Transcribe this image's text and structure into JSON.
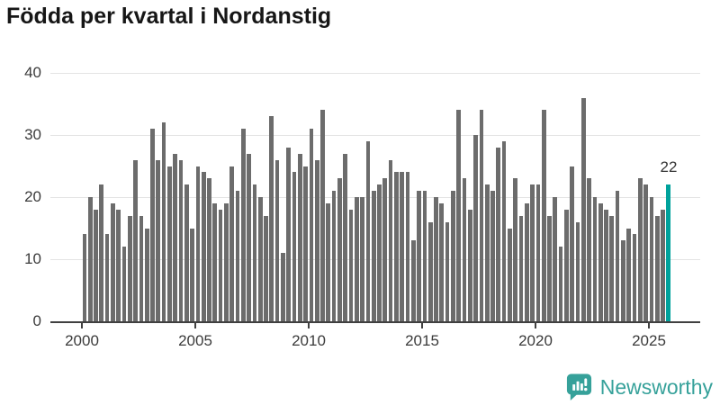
{
  "title": "Födda per kvartal i Nordanstig",
  "chart_data": {
    "type": "bar",
    "title": "Födda per kvartal i Nordanstig",
    "grid": "horizontal",
    "legend": "none",
    "bar_color": "#6c6c6c",
    "highlight_color": "#00a29c",
    "y_axis": {
      "ticks": [
        0,
        10,
        20,
        30,
        40
      ],
      "range": [
        0,
        40
      ]
    },
    "x_axis": {
      "tick_labels": [
        "2000",
        "2005",
        "2010",
        "2015",
        "2020",
        "2025"
      ],
      "ticks_every_n_bars": 20
    },
    "years": [
      {
        "year": "2000",
        "values": [
          14,
          20,
          18,
          22
        ]
      },
      {
        "year": "2001",
        "values": [
          14,
          19,
          18,
          12
        ]
      },
      {
        "year": "2002",
        "values": [
          17,
          26,
          17,
          15
        ]
      },
      {
        "year": "2003",
        "values": [
          31,
          26,
          32,
          25
        ]
      },
      {
        "year": "2004",
        "values": [
          27,
          26,
          22,
          15
        ]
      },
      {
        "year": "2005",
        "values": [
          25,
          24,
          23,
          19
        ]
      },
      {
        "year": "2006",
        "values": [
          18,
          19,
          25,
          21
        ]
      },
      {
        "year": "2007",
        "values": [
          31,
          27,
          22,
          20
        ]
      },
      {
        "year": "2008",
        "values": [
          17,
          33,
          26,
          11
        ]
      },
      {
        "year": "2009",
        "values": [
          28,
          24,
          27,
          25
        ]
      },
      {
        "year": "2010",
        "values": [
          31,
          26,
          34,
          19
        ]
      },
      {
        "year": "2011",
        "values": [
          21,
          23,
          27,
          18
        ]
      },
      {
        "year": "2012",
        "values": [
          20,
          20,
          29,
          21
        ]
      },
      {
        "year": "2013",
        "values": [
          22,
          23,
          26,
          24
        ]
      },
      {
        "year": "2014",
        "values": [
          24,
          24,
          13,
          21
        ]
      },
      {
        "year": "2015",
        "values": [
          21,
          16,
          20,
          19
        ]
      },
      {
        "year": "2016",
        "values": [
          16,
          21,
          34,
          23
        ]
      },
      {
        "year": "2017",
        "values": [
          18,
          30,
          34,
          22
        ]
      },
      {
        "year": "2018",
        "values": [
          21,
          28,
          29,
          15
        ]
      },
      {
        "year": "2019",
        "values": [
          23,
          17,
          19,
          22
        ]
      },
      {
        "year": "2020",
        "values": [
          22,
          34,
          17,
          20
        ]
      },
      {
        "year": "2021",
        "values": [
          12,
          18,
          25,
          16
        ]
      },
      {
        "year": "2022",
        "values": [
          36,
          23,
          20,
          19
        ]
      },
      {
        "year": "2023",
        "values": [
          18,
          17,
          21,
          13
        ]
      },
      {
        "year": "2024",
        "values": [
          15,
          14,
          23,
          22
        ]
      },
      {
        "year": "2025",
        "values": [
          20,
          17,
          18,
          22
        ]
      }
    ],
    "highlight": {
      "quarter": "2025 Q4",
      "value": 22,
      "label": "22"
    }
  },
  "footer": {
    "brand": "Newsworthy",
    "logo_icon": "newsworthy-speech-bubble-bar-chart-icon",
    "brand_color": "#36a19a"
  }
}
